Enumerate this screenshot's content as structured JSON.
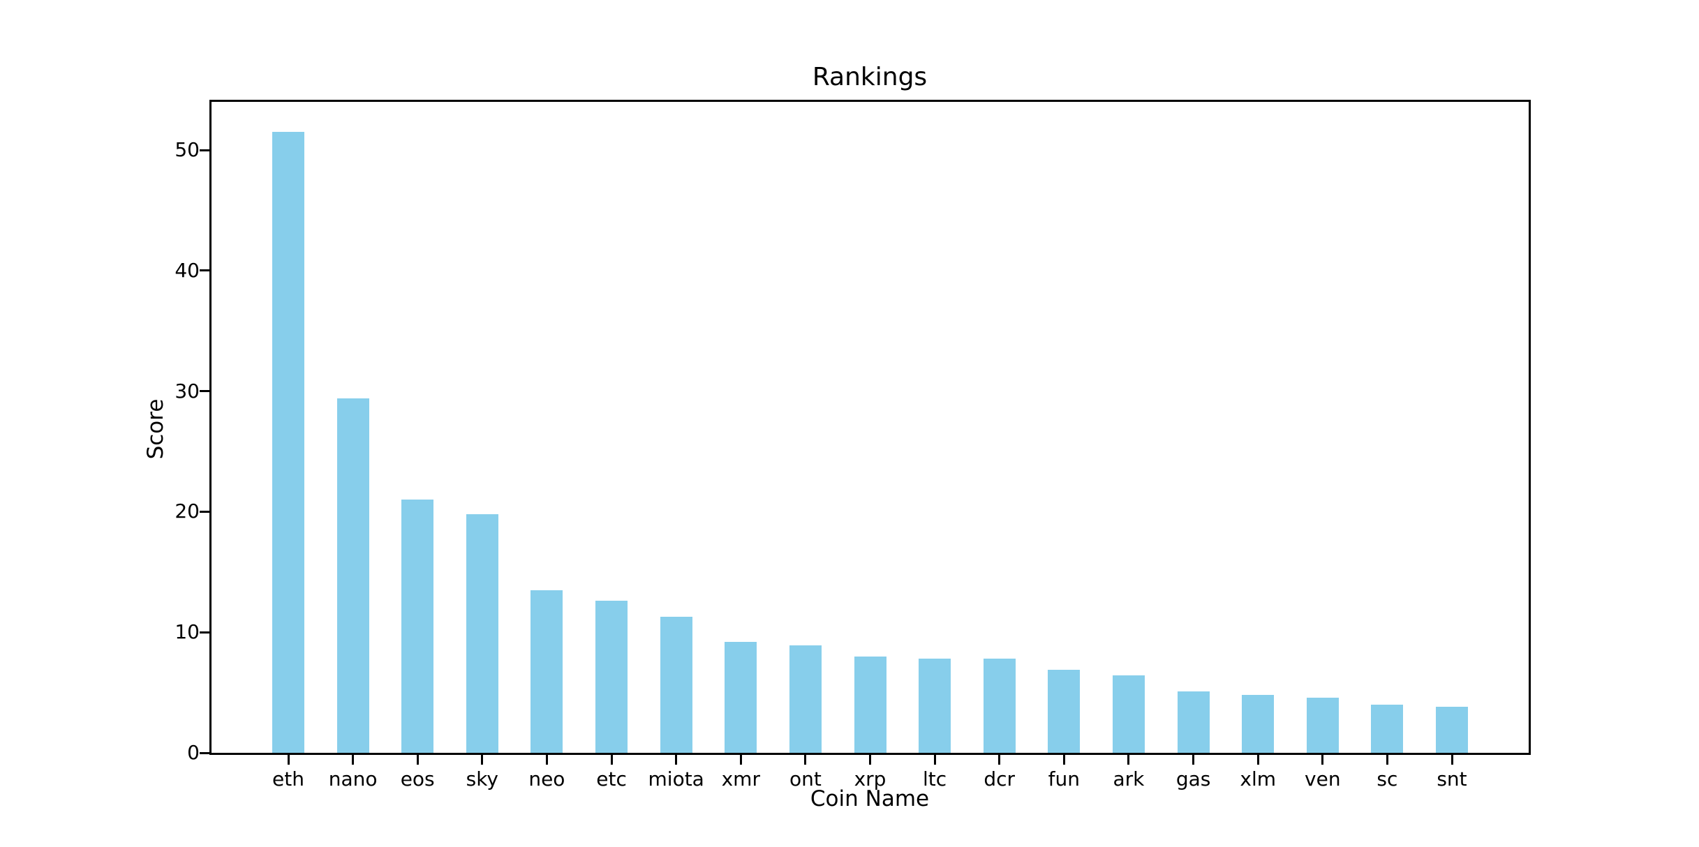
{
  "figure": {
    "title": "Rankings",
    "background_color": "#ffffff",
    "text_color": "#000000",
    "spine_color": "#000000"
  },
  "chart_data": {
    "type": "bar",
    "title": "Rankings",
    "xlabel": "Coin Name",
    "ylabel": "Score",
    "categories": [
      "eth",
      "nano",
      "eos",
      "sky",
      "neo",
      "etc",
      "miota",
      "xmr",
      "ont",
      "xrp",
      "ltc",
      "dcr",
      "fun",
      "ark",
      "gas",
      "xlm",
      "ven",
      "sc",
      "snt"
    ],
    "values": [
      51.5,
      29.4,
      21.0,
      19.8,
      13.5,
      12.6,
      11.3,
      9.2,
      8.9,
      8.0,
      7.8,
      7.8,
      6.9,
      6.4,
      5.1,
      4.8,
      4.6,
      4.0,
      3.8
    ],
    "bar_color": "#87CEEB",
    "ylim": [
      0,
      54
    ],
    "yticks": [
      0,
      10,
      20,
      30,
      40,
      50
    ],
    "grid": false,
    "legend": "none"
  }
}
